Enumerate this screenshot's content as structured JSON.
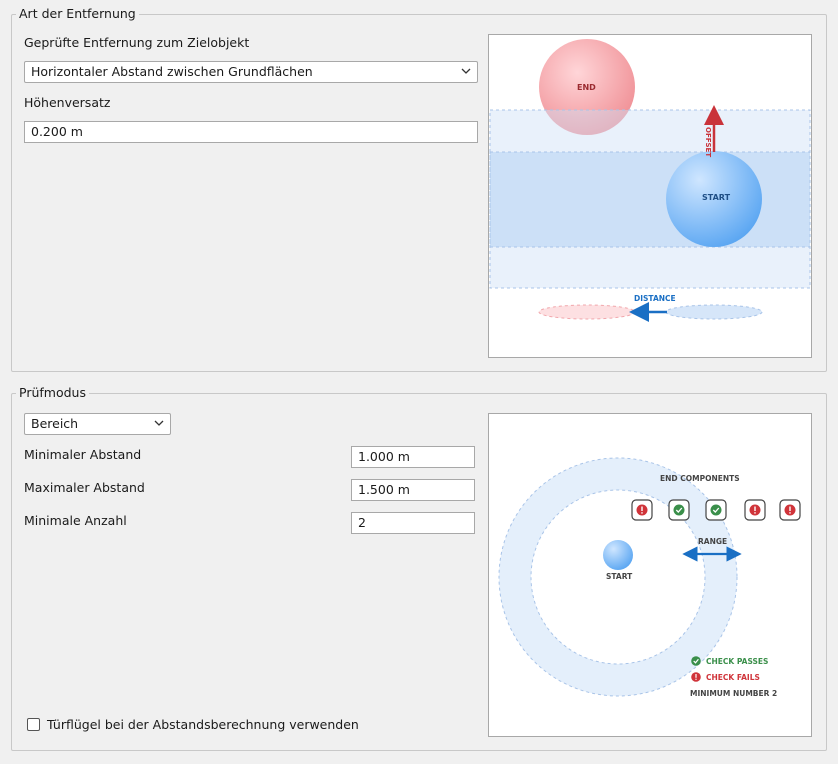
{
  "distance_group": {
    "title": "Art der Entfernung",
    "checked_distance_label": "Geprüfte Entfernung zum Zielobjekt",
    "checked_distance_value": "Horizontaler Abstand zwischen Grundflächen",
    "height_offset_label": "Höhenversatz",
    "height_offset_value": "0.200 m",
    "diagram": {
      "end_label": "END",
      "start_label": "START",
      "offset_label": "OFFSET",
      "distance_label": "DISTANCE"
    }
  },
  "mode_group": {
    "title": "Prüfmodus",
    "mode_value": "Bereich",
    "min_distance_label": "Minimaler Abstand",
    "min_distance_value": "1.000 m",
    "max_distance_label": "Maximaler Abstand",
    "max_distance_value": "1.500 m",
    "min_count_label": "Minimale Anzahl",
    "min_count_value": "2",
    "door_leaf_label": "Türflügel bei der Abstandsberechnung verwenden",
    "diagram": {
      "end_components_label": "END COMPONENTS",
      "range_label": "RANGE",
      "start_label": "START",
      "check_passes_label": "CHECK PASSES",
      "check_fails_label": "CHECK FAILS",
      "minimum_number_label": "MINIMUM NUMBER 2"
    }
  },
  "colors": {
    "end_red": "#f07a80",
    "start_blue": "#6ab0f5",
    "pass_green": "#3a8f4a",
    "fail_red": "#d0343a",
    "arrow_blue": "#1a6fc4"
  }
}
